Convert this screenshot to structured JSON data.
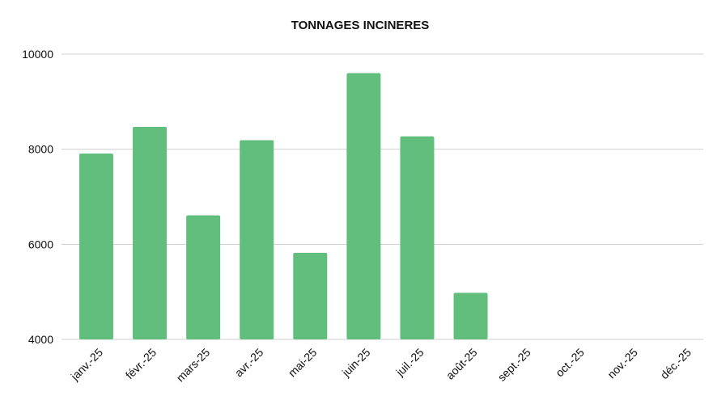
{
  "chart_data": {
    "type": "bar",
    "title": "TONNAGES INCINERES",
    "xlabel": "",
    "ylabel": "",
    "categories": [
      "janv.-25",
      "févr.-25",
      "mars-25",
      "avr.-25",
      "mai-25",
      "juin-25",
      "juil.-25",
      "août-25",
      "sept.-25",
      "oct.-25",
      "nov.-25",
      "déc.-25"
    ],
    "values": [
      7910,
      8470,
      6610,
      8190,
      5820,
      9600,
      8270,
      4980,
      null,
      null,
      null,
      null
    ],
    "ylim": [
      4000,
      10000
    ],
    "yticks": [
      4000,
      6000,
      8000,
      10000
    ],
    "yticklabels": [
      "4000",
      "6000",
      "8000",
      "10000"
    ],
    "grid": true,
    "legend": "none",
    "bar_color": "#62be7c"
  }
}
